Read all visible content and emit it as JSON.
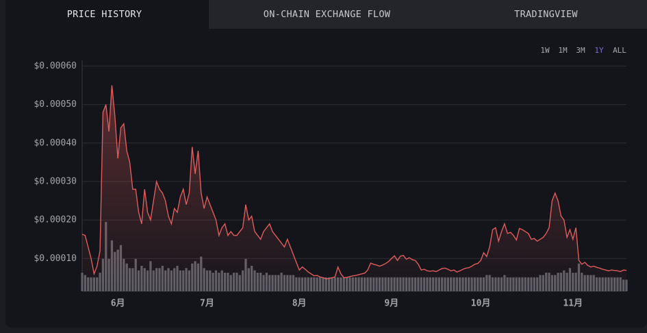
{
  "tabs": [
    "PRICE HISTORY",
    "ON-CHAIN EXCHANGE FLOW",
    "TRADINGVIEW"
  ],
  "range_buttons": [
    "1W",
    "1M",
    "3M",
    "1Y",
    "ALL"
  ],
  "chart_data": {
    "type": "line",
    "categories": [
      null,
      null,
      null,
      null,
      null,
      null,
      null,
      null,
      null,
      null,
      null,
      null,
      "6月",
      null,
      null,
      null,
      null,
      null,
      null,
      null,
      null,
      null,
      null,
      null,
      null,
      null,
      null,
      null,
      null,
      null,
      null,
      null,
      null,
      null,
      null,
      null,
      null,
      null,
      null,
      null,
      null,
      null,
      "7月",
      null,
      null,
      null,
      null,
      null,
      null,
      null,
      null,
      null,
      null,
      null,
      null,
      null,
      null,
      null,
      null,
      null,
      null,
      null,
      null,
      null,
      null,
      null,
      null,
      null,
      null,
      null,
      null,
      null,
      null,
      "8月",
      null,
      null,
      null,
      null,
      null,
      null,
      null,
      null,
      null,
      null,
      null,
      null,
      null,
      null,
      null,
      null,
      null,
      null,
      null,
      null,
      null,
      null,
      null,
      null,
      null,
      null,
      null,
      null,
      null,
      null,
      "9月",
      null,
      null,
      null,
      null,
      null,
      null,
      null,
      null,
      null,
      null,
      null,
      null,
      null,
      null,
      null,
      null,
      null,
      null,
      null,
      null,
      null,
      null,
      null,
      null,
      null,
      null,
      null,
      null,
      null,
      "10月",
      null,
      null,
      null,
      null,
      null,
      null,
      null,
      null,
      null,
      null,
      null,
      null,
      null,
      null,
      null,
      null,
      null,
      null,
      null,
      null,
      null,
      null,
      null,
      null,
      null,
      null,
      null,
      null,
      null,
      null,
      "11月",
      null,
      null,
      null,
      null,
      null,
      null,
      null,
      null,
      null,
      null,
      null,
      null,
      null,
      null,
      null,
      null,
      null,
      null
    ],
    "series": [
      {
        "color": "#e05c5c",
        "values": [
          0.000163,
          0.00016,
          0.00013,
          0.0001,
          6e-05,
          8e-05,
          0.00012,
          0.00048,
          0.0005,
          0.00043,
          0.00055,
          0.00047,
          0.00036,
          0.00044,
          0.00045,
          0.00038,
          0.00035,
          0.00028,
          0.00028,
          0.00022,
          0.00019,
          0.00028,
          0.00022,
          0.0002,
          0.00025,
          0.0003,
          0.00028,
          0.00027,
          0.00025,
          0.00021,
          0.00019,
          0.00023,
          0.00022,
          0.00026,
          0.00028,
          0.00024,
          0.00027,
          0.00039,
          0.00032,
          0.00038,
          0.00027,
          0.00023,
          0.00026,
          0.00024,
          0.00022,
          0.0002,
          0.00016,
          0.00018,
          0.00019,
          0.00016,
          0.00017,
          0.00016,
          0.00016,
          0.00017,
          0.00018,
          0.00024,
          0.0002,
          0.00021,
          0.00017,
          0.00016,
          0.00015,
          0.00017,
          0.00018,
          0.00019,
          0.00017,
          0.00016,
          0.00015,
          0.00014,
          0.00013,
          0.00015,
          0.00013,
          0.00011,
          9e-05,
          7e-05,
          7.8e-05,
          7.2e-05,
          6.5e-05,
          6e-05,
          5.5e-05,
          5.6e-05,
          5.2e-05,
          5e-05,
          4.7e-05,
          4.8e-05,
          5e-05,
          5.2e-05,
          7.8e-05,
          6e-05,
          5e-05,
          5.1e-05,
          5.3e-05,
          5.5e-05,
          5.6e-05,
          5.8e-05,
          6e-05,
          6.2e-05,
          7e-05,
          8.8e-05,
          8.5e-05,
          8.3e-05,
          8e-05,
          8.3e-05,
          8.7e-05,
          9.2e-05,
          0.0001,
          0.000107,
          9.5e-05,
          0.000106,
          0.000108,
          9.8e-05,
          0.000102,
          9.7e-05,
          9.5e-05,
          8.5e-05,
          7e-05,
          7.2e-05,
          6.8e-05,
          6.7e-05,
          6.8e-05,
          6.6e-05,
          7e-05,
          7.4e-05,
          7.5e-05,
          7.2e-05,
          6.8e-05,
          7e-05,
          6.5e-05,
          6.8e-05,
          7.2e-05,
          7.5e-05,
          7.6e-05,
          8e-05,
          8.5e-05,
          8.7e-05,
          9.5e-05,
          0.000115,
          0.000105,
          0.00013,
          0.000175,
          0.00018,
          0.000145,
          0.00017,
          0.00019,
          0.000165,
          0.000168,
          0.00016,
          0.000148,
          0.000178,
          0.000175,
          0.00017,
          0.000165,
          0.00015,
          0.000152,
          0.000145,
          0.00015,
          0.000155,
          0.000165,
          0.00018,
          0.00025,
          0.00027,
          0.00025,
          0.00021,
          0.0002,
          0.000155,
          0.000175,
          0.00015,
          0.00018,
          9.5e-05,
          8.5e-05,
          9e-05,
          8.2e-05,
          7.8e-05,
          8e-05,
          7.7e-05,
          7.5e-05,
          7.2e-05,
          7e-05,
          6.8e-05,
          7e-05,
          6.9e-05,
          6.8e-05,
          6.6e-05,
          7e-05,
          6.9e-05
        ]
      },
      {
        "type": "bar",
        "axis": "y2",
        "color": "#5d5f66",
        "values": [
          8,
          7,
          6,
          6,
          6,
          6,
          8,
          14,
          30,
          14,
          22,
          17,
          18,
          20,
          14,
          12,
          10,
          10,
          14,
          9,
          11,
          10,
          9,
          13,
          9,
          10,
          10,
          11,
          9,
          10,
          9,
          10,
          11,
          9,
          9,
          10,
          9,
          12,
          13,
          12,
          15,
          10,
          9,
          9,
          8,
          9,
          8,
          9,
          8,
          8,
          7,
          8,
          8,
          7,
          9,
          14,
          10,
          11,
          9,
          8,
          8,
          7,
          8,
          7,
          7,
          7,
          7,
          8,
          7,
          7,
          7,
          7,
          6,
          6,
          6,
          6,
          6,
          6,
          6,
          6,
          6,
          6,
          6,
          6,
          6,
          6,
          6,
          6,
          6,
          6,
          6,
          6,
          6,
          6,
          6,
          6,
          6,
          6,
          6,
          6,
          6,
          6,
          6,
          6,
          6,
          6,
          6,
          6,
          6,
          6,
          6,
          6,
          6,
          6,
          6,
          6,
          6,
          6,
          6,
          6,
          6,
          6,
          6,
          6,
          6,
          6,
          6,
          6,
          6,
          6,
          6,
          6,
          6,
          6,
          6,
          6,
          7,
          7,
          6,
          6,
          6,
          6,
          7,
          6,
          6,
          6,
          6,
          6,
          6,
          6,
          6,
          6,
          6,
          6,
          7,
          7,
          8,
          8,
          7,
          7,
          8,
          8,
          9,
          8,
          10,
          8,
          8,
          12,
          8,
          7,
          7,
          7,
          7,
          6,
          6,
          6,
          6,
          6,
          6,
          6,
          6,
          6,
          5,
          5
        ]
      }
    ],
    "ylim": [
      1.5e-05,
      0.000615
    ],
    "yticks": [
      {
        "value": 0.0001,
        "label": "$0.00010"
      },
      {
        "value": 0.0002,
        "label": "$0.00020"
      },
      {
        "value": 0.0003,
        "label": "$0.00030"
      },
      {
        "value": 0.0004,
        "label": "$0.00040"
      },
      {
        "value": 0.0005,
        "label": "$0.00050"
      },
      {
        "value": 0.0006,
        "label": "$0.00060"
      }
    ],
    "y2lim": [
      0,
      100
    ],
    "grid": true
  }
}
